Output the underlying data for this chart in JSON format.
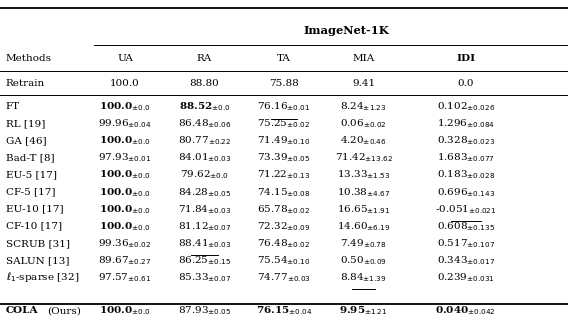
{
  "title": "ImageNet-1K",
  "col_headers": [
    "Methods",
    "UA",
    "RA",
    "TA",
    "MIA",
    "IDI"
  ],
  "retrain_row": [
    "Retrain",
    "100.0",
    "88.80",
    "75.88",
    "9.41",
    "0.0"
  ],
  "rows": [
    {
      "method": "FT",
      "UA": {
        "val": "100.0",
        "pm": "0.0",
        "bold": true,
        "underline": false
      },
      "RA": {
        "val": "88.52",
        "pm": "0.0",
        "bold": true,
        "underline": false
      },
      "TA": {
        "val": "76.16",
        "pm": "0.01",
        "bold": false,
        "underline": true
      },
      "MIA": {
        "val": "8.24",
        "pm": "1.23",
        "bold": false,
        "underline": false
      },
      "IDI": {
        "val": "0.102",
        "pm": "0.026",
        "bold": false,
        "underline": false
      }
    },
    {
      "method": "RL [19]",
      "UA": {
        "val": "99.96",
        "pm": "0.04",
        "bold": false,
        "underline": false
      },
      "RA": {
        "val": "86.48",
        "pm": "0.06",
        "bold": false,
        "underline": false
      },
      "TA": {
        "val": "75.25",
        "pm": "0.02",
        "bold": false,
        "underline": false
      },
      "MIA": {
        "val": "0.06",
        "pm": "0.02",
        "bold": false,
        "underline": false
      },
      "IDI": {
        "val": "1.296",
        "pm": "0.084",
        "bold": false,
        "underline": false
      }
    },
    {
      "method": "GA [46]",
      "UA": {
        "val": "100.0",
        "pm": "0.0",
        "bold": true,
        "underline": false
      },
      "RA": {
        "val": "80.77",
        "pm": "0.22",
        "bold": false,
        "underline": false
      },
      "TA": {
        "val": "71.49",
        "pm": "0.10",
        "bold": false,
        "underline": false
      },
      "MIA": {
        "val": "4.20",
        "pm": "0.46",
        "bold": false,
        "underline": false
      },
      "IDI": {
        "val": "0.328",
        "pm": "0.023",
        "bold": false,
        "underline": false
      }
    },
    {
      "method": "Bad-T [8]",
      "UA": {
        "val": "97.93",
        "pm": "0.01",
        "bold": false,
        "underline": false
      },
      "RA": {
        "val": "84.01",
        "pm": "0.03",
        "bold": false,
        "underline": false
      },
      "TA": {
        "val": "73.39",
        "pm": "0.05",
        "bold": false,
        "underline": false
      },
      "MIA": {
        "val": "71.42",
        "pm": "13.62",
        "bold": false,
        "underline": false
      },
      "IDI": {
        "val": "1.683",
        "pm": "0.077",
        "bold": false,
        "underline": false
      }
    },
    {
      "method": "EU-5 [17]",
      "UA": {
        "val": "100.0",
        "pm": "0.0",
        "bold": true,
        "underline": false
      },
      "RA": {
        "val": "79.62",
        "pm": "0.0",
        "bold": false,
        "underline": false
      },
      "TA": {
        "val": "71.22",
        "pm": "0.13",
        "bold": false,
        "underline": false
      },
      "MIA": {
        "val": "13.33",
        "pm": "1.53",
        "bold": false,
        "underline": false
      },
      "IDI": {
        "val": "0.183",
        "pm": "0.028",
        "bold": false,
        "underline": false
      }
    },
    {
      "method": "CF-5 [17]",
      "UA": {
        "val": "100.0",
        "pm": "0.0",
        "bold": true,
        "underline": false
      },
      "RA": {
        "val": "84.28",
        "pm": "0.05",
        "bold": false,
        "underline": false
      },
      "TA": {
        "val": "74.15",
        "pm": "0.08",
        "bold": false,
        "underline": false
      },
      "MIA": {
        "val": "10.38",
        "pm": "4.67",
        "bold": false,
        "underline": false
      },
      "IDI": {
        "val": "0.696",
        "pm": "0.143",
        "bold": false,
        "underline": false
      }
    },
    {
      "method": "EU-10 [17]",
      "UA": {
        "val": "100.0",
        "pm": "0.0",
        "bold": true,
        "underline": false
      },
      "RA": {
        "val": "71.84",
        "pm": "0.03",
        "bold": false,
        "underline": false
      },
      "TA": {
        "val": "65.78",
        "pm": "0.02",
        "bold": false,
        "underline": false
      },
      "MIA": {
        "val": "16.65",
        "pm": "1.91",
        "bold": false,
        "underline": false
      },
      "IDI": {
        "val": "-0.051",
        "pm": "0.021",
        "bold": false,
        "underline": true
      }
    },
    {
      "method": "CF-10 [17]",
      "UA": {
        "val": "100.0",
        "pm": "0.0",
        "bold": true,
        "underline": false
      },
      "RA": {
        "val": "81.12",
        "pm": "0.07",
        "bold": false,
        "underline": false
      },
      "TA": {
        "val": "72.32",
        "pm": "0.09",
        "bold": false,
        "underline": false
      },
      "MIA": {
        "val": "14.60",
        "pm": "6.19",
        "bold": false,
        "underline": false
      },
      "IDI": {
        "val": "0.608",
        "pm": "0.135",
        "bold": false,
        "underline": false
      }
    },
    {
      "method": "SCRUB [31]",
      "UA": {
        "val": "99.36",
        "pm": "0.02",
        "bold": false,
        "underline": false
      },
      "RA": {
        "val": "88.41",
        "pm": "0.03",
        "bold": false,
        "underline": true
      },
      "TA": {
        "val": "76.48",
        "pm": "0.02",
        "bold": false,
        "underline": false
      },
      "MIA": {
        "val": "7.49",
        "pm": "0.78",
        "bold": false,
        "underline": false
      },
      "IDI": {
        "val": "0.517",
        "pm": "0.107",
        "bold": false,
        "underline": false
      }
    },
    {
      "method": "SALUN [13]",
      "UA": {
        "val": "89.67",
        "pm": "0.27",
        "bold": false,
        "underline": false
      },
      "RA": {
        "val": "86.25",
        "pm": "0.15",
        "bold": false,
        "underline": false
      },
      "TA": {
        "val": "75.54",
        "pm": "0.10",
        "bold": false,
        "underline": false
      },
      "MIA": {
        "val": "0.50",
        "pm": "0.09",
        "bold": false,
        "underline": false
      },
      "IDI": {
        "val": "0.343",
        "pm": "0.017",
        "bold": false,
        "underline": false
      }
    },
    {
      "method": "l1-sparse [32]",
      "UA": {
        "val": "97.57",
        "pm": "0.61",
        "bold": false,
        "underline": false
      },
      "RA": {
        "val": "85.33",
        "pm": "0.07",
        "bold": false,
        "underline": false
      },
      "TA": {
        "val": "74.77",
        "pm": "0.03",
        "bold": false,
        "underline": false
      },
      "MIA": {
        "val": "8.84",
        "pm": "1.39",
        "bold": false,
        "underline": true
      },
      "IDI": {
        "val": "0.239",
        "pm": "0.031",
        "bold": false,
        "underline": false
      }
    }
  ],
  "cola_row": {
    "method": "COLA (Ours)",
    "UA": {
      "val": "100.0",
      "pm": "0.0",
      "bold": true,
      "underline": false
    },
    "RA": {
      "val": "87.93",
      "pm": "0.05",
      "bold": false,
      "underline": false
    },
    "TA": {
      "val": "76.15",
      "pm": "0.04",
      "bold": true,
      "underline": false
    },
    "MIA": {
      "val": "9.95",
      "pm": "1.21",
      "bold": true,
      "underline": false
    },
    "IDI": {
      "val": "0.040",
      "pm": "0.042",
      "bold": true,
      "underline": false
    }
  },
  "figsize": [
    5.68,
    3.16
  ],
  "dpi": 100
}
